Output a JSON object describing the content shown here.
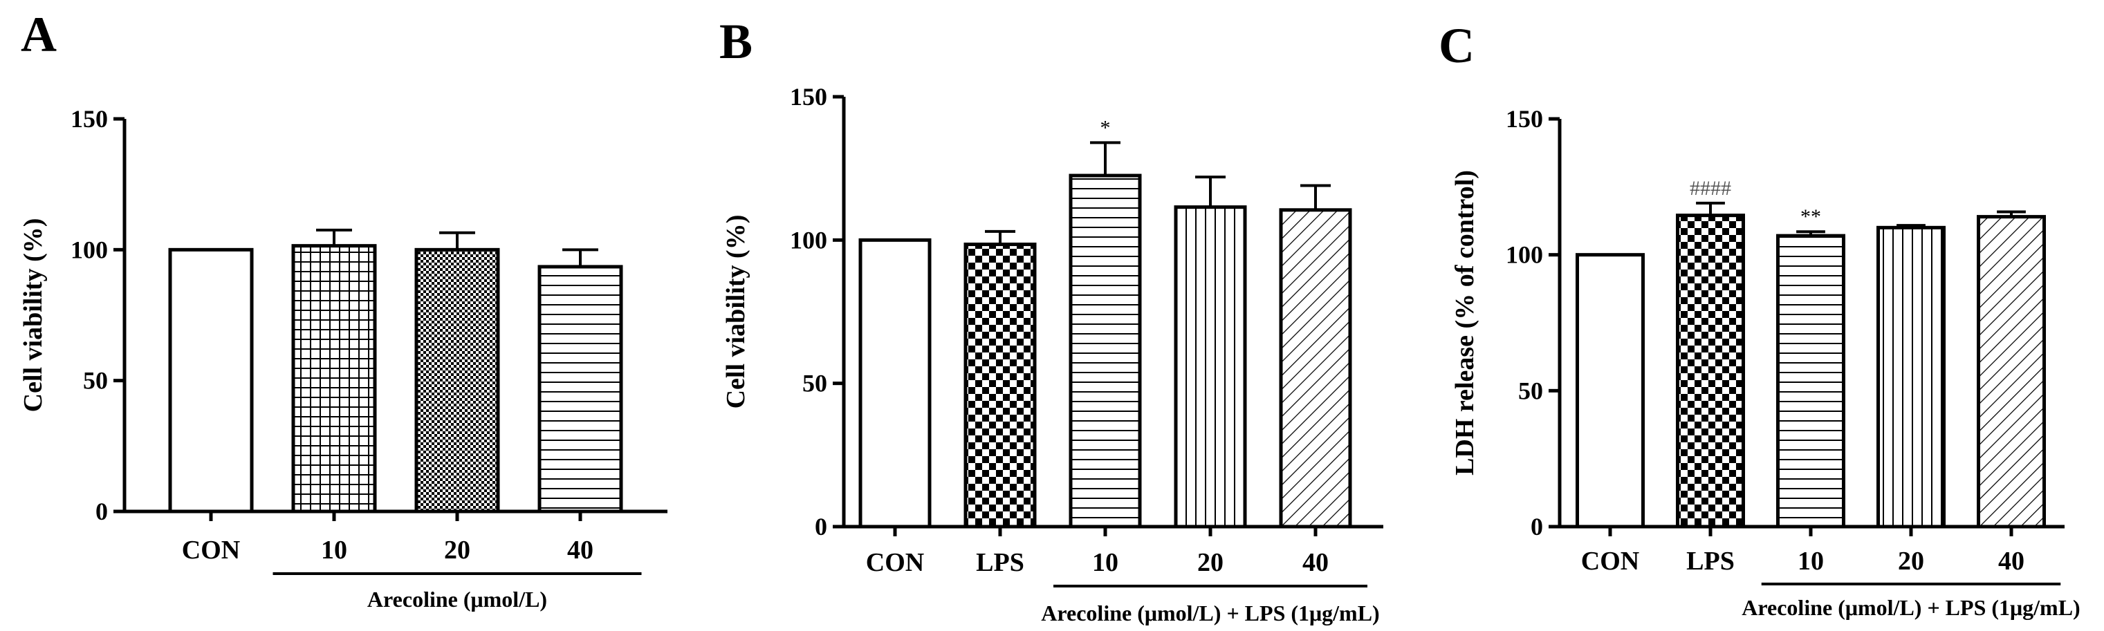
{
  "chart_data": [
    {
      "panel": "A",
      "type": "bar",
      "title": "",
      "ylabel": "Cell viability (%)",
      "xlabel": "",
      "ylim": [
        0,
        150
      ],
      "yticks": [
        "0",
        "50",
        "100",
        "150"
      ],
      "categories": [
        "CON",
        "10",
        "20",
        "40"
      ],
      "values": [
        100,
        101.5,
        100,
        93.5
      ],
      "errors": [
        0,
        6,
        6.5,
        6.5
      ],
      "patterns": [
        "none",
        "grid",
        "checker-fine",
        "hlines"
      ],
      "group_label": "Arecoline (μmol/L)",
      "group_span": [
        1,
        3
      ],
      "significance": []
    },
    {
      "panel": "B",
      "type": "bar",
      "title": "",
      "ylabel": "Cell viability (%)",
      "xlabel": "",
      "ylim": [
        0,
        150
      ],
      "yticks": [
        "0",
        "50",
        "100",
        "150"
      ],
      "categories": [
        "CON",
        "LPS",
        "10",
        "20",
        "40"
      ],
      "values": [
        100,
        98.5,
        122.5,
        111.5,
        110.5
      ],
      "errors": [
        0,
        4.5,
        11.5,
        10.5,
        8.5
      ],
      "patterns": [
        "none",
        "checker-coarse",
        "hlines",
        "vlines",
        "diagonal"
      ],
      "group_label": "Arecoline (μmol/L) + LPS (1μg/mL)",
      "group_span": [
        2,
        4
      ],
      "significance": [
        {
          "category": "10",
          "text": "*",
          "kind": "star"
        }
      ]
    },
    {
      "panel": "C",
      "type": "bar",
      "title": "",
      "ylabel": "LDH release (% of control)",
      "xlabel": "",
      "ylim": [
        0,
        150
      ],
      "yticks": [
        "0",
        "50",
        "100",
        "150"
      ],
      "categories": [
        "CON",
        "LPS",
        "10",
        "20",
        "40"
      ],
      "values": [
        100,
        114.5,
        107,
        110,
        114
      ],
      "errors": [
        0,
        4.5,
        1.5,
        0.8,
        1.8
      ],
      "patterns": [
        "none",
        "checker-coarse",
        "hlines",
        "vlines",
        "diagonal"
      ],
      "group_label": "Arecoline (μmol/L) + LPS (1μg/mL)",
      "group_span": [
        2,
        4
      ],
      "significance": [
        {
          "category": "LPS",
          "text": "####",
          "kind": "hash"
        },
        {
          "category": "10",
          "text": "**",
          "kind": "star"
        }
      ]
    }
  ]
}
